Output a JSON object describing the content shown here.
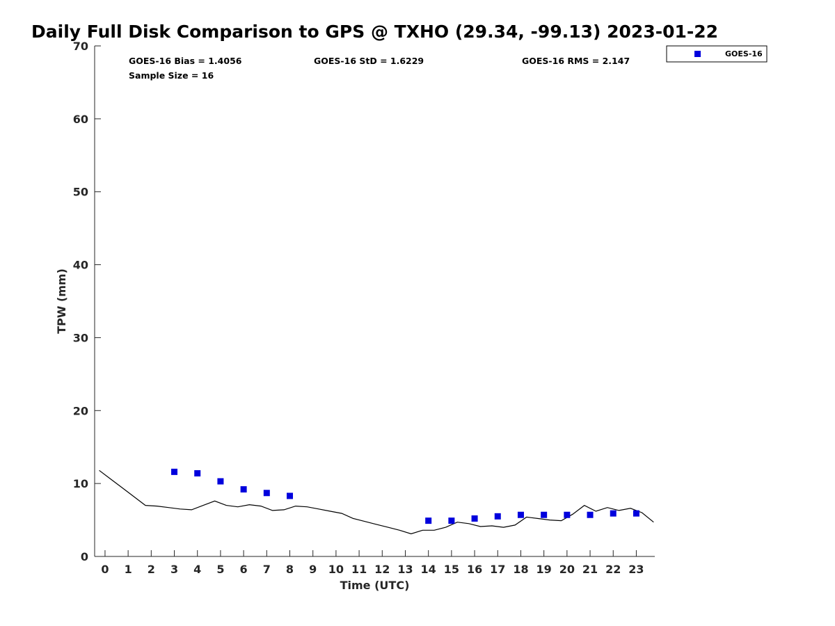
{
  "chart_data": {
    "type": "scatter",
    "title": "Daily Full Disk Comparison to GPS @ TXHO (29.34, -99.13) 2023-01-22",
    "xlabel": "Time (UTC)",
    "ylabel": "TPW (mm)",
    "xlim": [
      -0.45,
      23.8
    ],
    "ylim": [
      0,
      70
    ],
    "x_ticks": [
      0,
      1,
      2,
      3,
      4,
      5,
      6,
      7,
      8,
      9,
      10,
      11,
      12,
      13,
      14,
      15,
      16,
      17,
      18,
      19,
      20,
      21,
      22,
      23
    ],
    "y_ticks": [
      0,
      10,
      20,
      30,
      40,
      50,
      60,
      70
    ],
    "grid": false,
    "legend_position": "top-right",
    "stats": {
      "bias": "GOES-16 Bias = 1.4056",
      "std": "GOES-16 StD = 1.6229",
      "rms": "GOES-16 RMS = 2.147",
      "sample": "Sample Size = 16"
    },
    "series": [
      {
        "name": "GOES-16",
        "kind": "marker",
        "color": "#0000dd",
        "marker": "square",
        "x": [
          3,
          4,
          5,
          6,
          7,
          8,
          14,
          15,
          16,
          17,
          18,
          19,
          20,
          21,
          22,
          23
        ],
        "y": [
          11.6,
          11.4,
          10.3,
          9.2,
          8.7,
          8.3,
          4.9,
          4.9,
          5.2,
          5.5,
          5.7,
          5.7,
          5.7,
          5.7,
          5.9,
          5.9
        ]
      },
      {
        "kind": "line",
        "color": "#000000",
        "x": [
          -0.25,
          0.25,
          0.75,
          1.25,
          1.75,
          2.25,
          2.75,
          3.25,
          3.75,
          4.25,
          4.75,
          5.25,
          5.75,
          6.25,
          6.75,
          7.25,
          7.75,
          8.25,
          8.75,
          9.25,
          9.75,
          10.25,
          10.75,
          11.25,
          11.75,
          12.25,
          12.75,
          13.25,
          13.75,
          14.25,
          14.75,
          15.25,
          15.75,
          16.25,
          16.75,
          17.25,
          17.75,
          18.25,
          18.75,
          19.25,
          19.75,
          20.25,
          20.75,
          21.25,
          21.75,
          22.25,
          22.75,
          23.25,
          23.75
        ],
        "y": [
          11.8,
          10.6,
          9.4,
          8.2,
          7.0,
          6.9,
          6.7,
          6.5,
          6.4,
          7.0,
          7.6,
          7.0,
          6.8,
          7.1,
          6.9,
          6.3,
          6.4,
          6.9,
          6.8,
          6.5,
          6.2,
          5.9,
          5.2,
          4.8,
          4.4,
          4.0,
          3.6,
          3.1,
          3.6,
          3.6,
          4.0,
          4.7,
          4.5,
          4.1,
          4.2,
          4.0,
          4.3,
          5.4,
          5.2,
          5.0,
          4.9,
          5.8,
          7.0,
          6.2,
          6.7,
          6.3,
          6.6,
          6.0,
          4.7
        ]
      }
    ]
  }
}
